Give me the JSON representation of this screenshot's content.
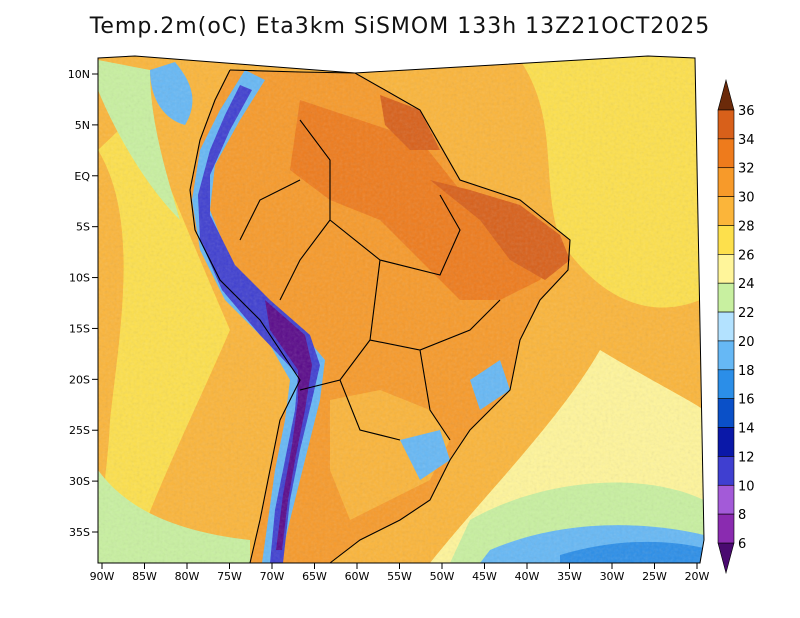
{
  "title": "Temp.2m(oC) Eta3km SiSMOM 133h 13Z21OCT2025",
  "map": {
    "variable": "2 m air temperature",
    "units": "oC",
    "lon_range": [
      -90,
      -20
    ],
    "lat_range": [
      -37,
      11
    ],
    "lat_ticks": [
      {
        "value": 10,
        "label": "10N"
      },
      {
        "value": 5,
        "label": "5N"
      },
      {
        "value": 0,
        "label": "EQ"
      },
      {
        "value": -5,
        "label": "5S"
      },
      {
        "value": -10,
        "label": "10S"
      },
      {
        "value": -15,
        "label": "15S"
      },
      {
        "value": -20,
        "label": "20S"
      },
      {
        "value": -25,
        "label": "25S"
      },
      {
        "value": -30,
        "label": "30S"
      },
      {
        "value": -35,
        "label": "35S"
      }
    ],
    "lon_ticks": [
      {
        "value": -90,
        "label": "90W"
      },
      {
        "value": -85,
        "label": "85W"
      },
      {
        "value": -80,
        "label": "80W"
      },
      {
        "value": -75,
        "label": "75W"
      },
      {
        "value": -70,
        "label": "70W"
      },
      {
        "value": -65,
        "label": "65W"
      },
      {
        "value": -60,
        "label": "60W"
      },
      {
        "value": -55,
        "label": "55W"
      },
      {
        "value": -50,
        "label": "50W"
      },
      {
        "value": -45,
        "label": "45W"
      },
      {
        "value": -40,
        "label": "40W"
      },
      {
        "value": -35,
        "label": "35W"
      },
      {
        "value": -30,
        "label": "30W"
      },
      {
        "value": -25,
        "label": "25W"
      },
      {
        "value": -20,
        "label": "20W"
      }
    ]
  },
  "colorbar": {
    "levels": [
      "6",
      "8",
      "10",
      "12",
      "14",
      "16",
      "18",
      "20",
      "22",
      "24",
      "26",
      "28",
      "30",
      "32",
      "34",
      "36"
    ],
    "colors": [
      "#5a0a8a",
      "#8a2bb0",
      "#a35ad8",
      "#3f3fd0",
      "#0a18a8",
      "#0a50c8",
      "#2b8ee8",
      "#66b8f5",
      "#b3e2ff",
      "#c8f0a0",
      "#fff59a",
      "#fde04c",
      "#fbb53a",
      "#f79a2a",
      "#ee7b1c",
      "#d8601a",
      "#9c3a0e"
    ],
    "over_color": "#6b2a0a",
    "under_color": "#4a0a70"
  },
  "colors": {
    "ocean_warm": "#fbb53a",
    "ocean_mild": "#fde04c",
    "ocean_cool": "#fff59a",
    "land_hot": "#ee7b1c",
    "andes_cold": "#5a0a8a",
    "coast_line": "#000000"
  }
}
